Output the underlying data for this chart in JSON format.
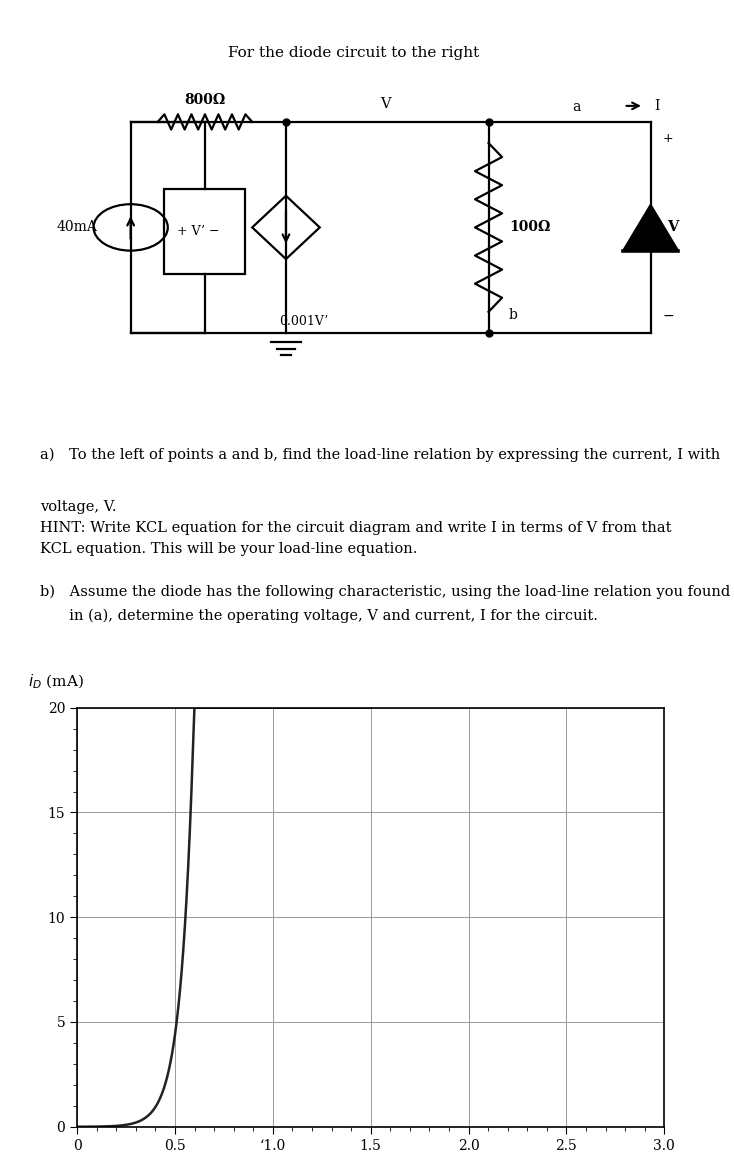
{
  "fig_width": 7.34,
  "fig_height": 11.64,
  "fig_dpi": 100,
  "bg_color": "#ffffff",
  "title_text": "For the diode circuit to the right",
  "text_a": "a) To the left of points a and b, find the load-line relation by expressing the current, I with",
  "text_a2": "voltage, V.",
  "text_hint1": "HINT: Write KCL equation for the circuit diagram and write I in terms of V from that",
  "text_hint2": "KCL equation. This will be your load-line equation.",
  "text_b1": "b) Assume the diode has the following characteristic, using the load-line relation you found",
  "text_b2": "  in (a), determine the operating voltage, V and current, I for the circuit.",
  "sep_color": "#aaaaaa",
  "graph": {
    "xlim": [
      0,
      3.0
    ],
    "ylim": [
      0,
      20
    ],
    "xticks": [
      0,
      0.5,
      1.0,
      1.5,
      2.0,
      2.5,
      3.0
    ],
    "yticks": [
      0,
      5,
      10,
      15,
      20
    ],
    "xtick_labels": [
      "0",
      "0.5",
      "‘1.0",
      "1.5",
      "2.0",
      "2.5",
      "3.0"
    ],
    "ytick_labels": [
      "0",
      "5",
      "10",
      "15",
      "20"
    ],
    "grid_color": "#999999",
    "curve_color": "#222222",
    "curve_linewidth": 1.8,
    "diode_Is": 2e-06,
    "diode_Vt": 0.026,
    "diode_n": 2.5
  }
}
